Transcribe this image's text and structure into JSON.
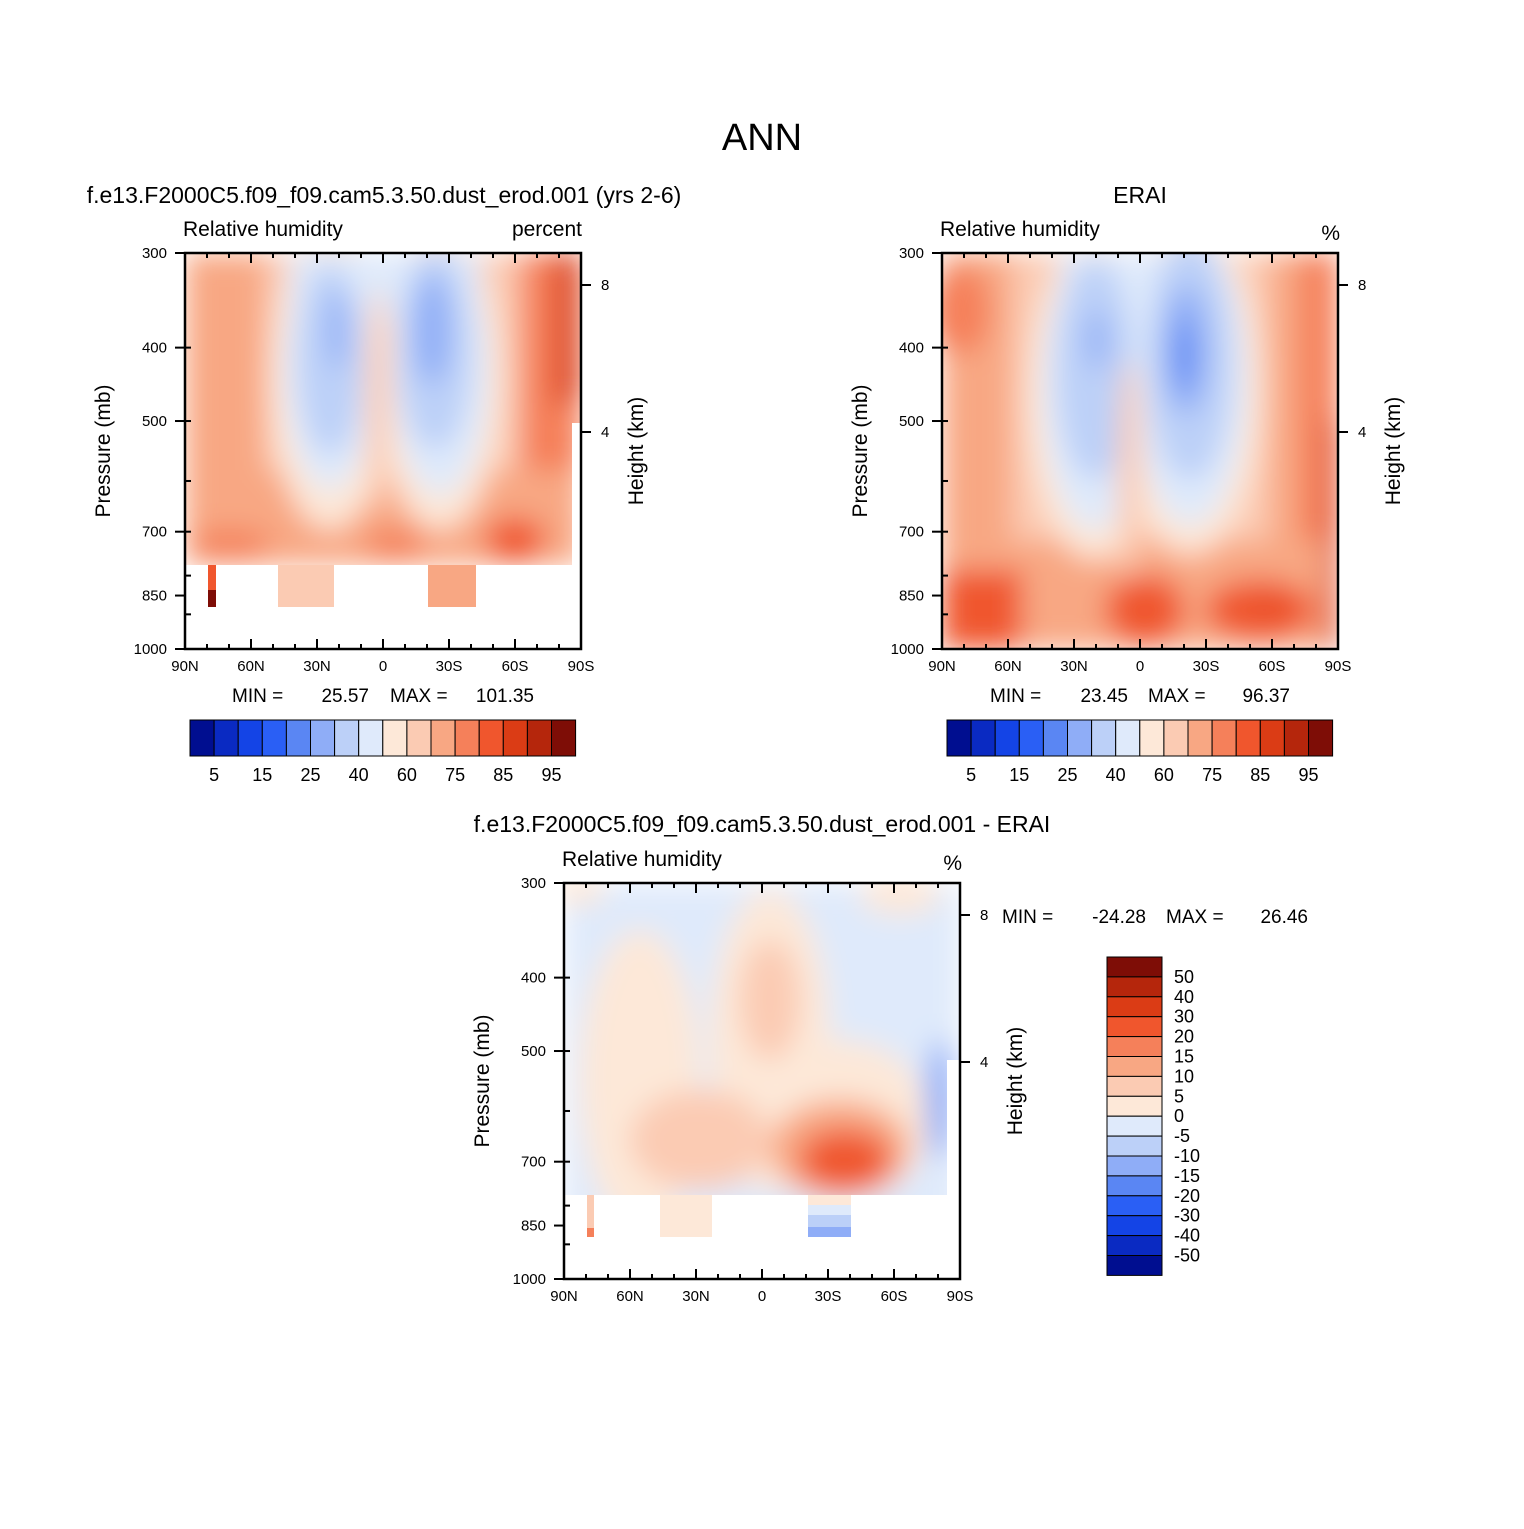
{
  "figure_title": "ANN",
  "palette": {
    "abs": [
      "#000e90",
      "#0a2ac2",
      "#1444e6",
      "#2a5ff5",
      "#5a86f3",
      "#8fadf7",
      "#bcd0f8",
      "#dfeafb",
      "#fde8d8",
      "#fbcbb3",
      "#f8a783",
      "#f5805a",
      "#f0562d",
      "#db3c15",
      "#b5260c",
      "#7e0d06"
    ],
    "diff": [
      "#000e90",
      "#0a2ac2",
      "#1444e6",
      "#2a5ff5",
      "#5a86f3",
      "#8fadf7",
      "#bcd0f8",
      "#dfeafb",
      "#fde8d8",
      "#fbcbb3",
      "#f8a783",
      "#f5805a",
      "#f0562d",
      "#db3c15",
      "#b5260c",
      "#7e0d06"
    ]
  },
  "chart_data": [
    {
      "type": "heatmap",
      "id": "model",
      "title": "f.e13.F2000C5.f09_f09.cam5.3.50.dust_erod.001 (yrs 2-6)",
      "left_string": "Relative humidity",
      "right_string": "percent",
      "xlabel": "",
      "ylabel": "Pressure (mb)",
      "y2label": "Height (km)",
      "x_ticks": [
        "90N",
        "60N",
        "30N",
        "0",
        "30S",
        "60S",
        "90S"
      ],
      "y_ticks": [
        "300",
        "400",
        "500",
        "700",
        "850",
        "1000"
      ],
      "y_tick_values": [
        300,
        400,
        500,
        700,
        850,
        1000
      ],
      "y2_ticks": [
        "8",
        "4"
      ],
      "ylim": [
        300,
        1000
      ],
      "xlim": [
        90,
        -90
      ],
      "min_label": "MIN =",
      "min_value": "25.57",
      "max_label": "MAX =",
      "max_value": "101.35",
      "levels": [
        5,
        10,
        15,
        20,
        25,
        30,
        40,
        50,
        60,
        65,
        75,
        80,
        85,
        90,
        95
      ],
      "colorbar_labels": [
        "5",
        "15",
        "25",
        "40",
        "60",
        "75",
        "85",
        "95"
      ]
    },
    {
      "type": "heatmap",
      "id": "obs",
      "title": "ERAI",
      "left_string": "Relative humidity",
      "right_string": "%",
      "xlabel": "",
      "ylabel": "Pressure (mb)",
      "y2label": "Height (km)",
      "x_ticks": [
        "90N",
        "60N",
        "30N",
        "0",
        "30S",
        "60S",
        "90S"
      ],
      "y_ticks": [
        "300",
        "400",
        "500",
        "700",
        "850",
        "1000"
      ],
      "y_tick_values": [
        300,
        400,
        500,
        700,
        850,
        1000
      ],
      "y2_ticks": [
        "8",
        "4"
      ],
      "ylim": [
        300,
        1000
      ],
      "xlim": [
        90,
        -90
      ],
      "min_label": "MIN =",
      "min_value": "23.45",
      "max_label": "MAX =",
      "max_value": "96.37",
      "levels": [
        5,
        10,
        15,
        20,
        25,
        30,
        40,
        50,
        60,
        65,
        75,
        80,
        85,
        90,
        95
      ],
      "colorbar_labels": [
        "5",
        "15",
        "25",
        "40",
        "60",
        "75",
        "85",
        "95"
      ]
    },
    {
      "type": "heatmap",
      "id": "diff",
      "title": "f.e13.F2000C5.f09_f09.cam5.3.50.dust_erod.001 - ERAI",
      "left_string": "Relative humidity",
      "right_string": "%",
      "xlabel": "",
      "ylabel": "Pressure (mb)",
      "y2label": "Height (km)",
      "x_ticks": [
        "90N",
        "60N",
        "30N",
        "0",
        "30S",
        "60S",
        "90S"
      ],
      "y_ticks": [
        "300",
        "400",
        "500",
        "700",
        "850",
        "1000"
      ],
      "y_tick_values": [
        300,
        400,
        500,
        700,
        850,
        1000
      ],
      "y2_ticks": [
        "8",
        "4"
      ],
      "ylim": [
        300,
        1000
      ],
      "xlim": [
        90,
        -90
      ],
      "min_label": "MIN =",
      "min_value": "-24.28",
      "max_label": "MAX =",
      "max_value": "26.46",
      "levels": [
        -50,
        -40,
        -30,
        -20,
        -15,
        -10,
        -5,
        0,
        5,
        10,
        15,
        20,
        30,
        40,
        50
      ],
      "colorbar_labels": [
        "50",
        "40",
        "30",
        "20",
        "15",
        "10",
        "5",
        "0",
        "-5",
        "-10",
        "-15",
        "-20",
        "-30",
        "-40",
        "-50"
      ]
    }
  ]
}
